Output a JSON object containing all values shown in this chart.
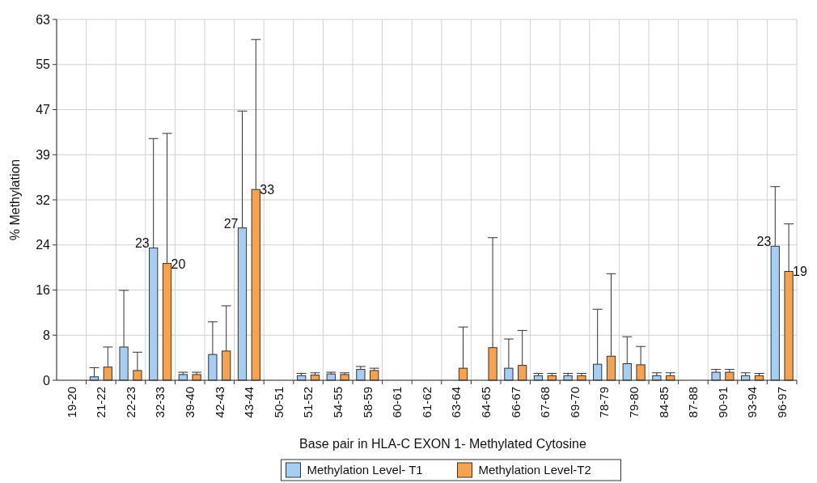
{
  "chart_data": {
    "type": "bar",
    "xlabel": "Base pair in HLA-C EXON 1- Methylated Cytosine",
    "ylabel": "% Methylation",
    "categories": [
      "19-20",
      "21-22",
      "22-23",
      "32-33",
      "39-40",
      "42-43",
      "43-44",
      "50-51",
      "51-52",
      "54-55",
      "58-59",
      "60-61",
      "61-62",
      "63-64",
      "64-65",
      "66-67",
      "67-68",
      "69-70",
      "78-79",
      "79-80",
      "84-85",
      "87-88",
      "90-91",
      "93-94",
      "96-97"
    ],
    "ylim": [
      0,
      63
    ],
    "yticks": [
      0,
      {
        "value": 7.875,
        "label": "8"
      },
      {
        "value": 15.75,
        "label": "16"
      },
      {
        "value": 23.625,
        "label": "24"
      },
      {
        "value": 31.5,
        "label": "32"
      },
      {
        "value": 39.375,
        "label": "39"
      },
      {
        "value": 47.25,
        "label": "47"
      },
      {
        "value": 55.125,
        "label": "55"
      },
      63
    ],
    "grid": true,
    "legend": "bottom",
    "series": [
      {
        "name": "Methylation Level- T1",
        "color": "#a6cdf2",
        "values": [
          null,
          0.6,
          5.8,
          23.1,
          1.0,
          4.5,
          26.6,
          null,
          0.8,
          1.1,
          1.9,
          null,
          null,
          null,
          null,
          2.1,
          0.8,
          0.8,
          2.8,
          2.9,
          0.8,
          null,
          1.4,
          0.8,
          23.4
        ],
        "errors": [
          null,
          [
            0.6,
            2.2
          ],
          [
            5.8,
            15.7
          ],
          [
            23.1,
            42.2
          ],
          [
            1.0,
            1.4
          ],
          [
            4.5,
            10.2
          ],
          [
            26.6,
            47.0
          ],
          null,
          [
            0.8,
            1.2
          ],
          [
            1.1,
            1.4
          ],
          [
            1.9,
            2.4
          ],
          null,
          null,
          null,
          null,
          [
            2.1,
            7.2
          ],
          [
            0.8,
            1.2
          ],
          [
            0.8,
            1.2
          ],
          [
            2.8,
            12.4
          ],
          [
            2.9,
            7.6
          ],
          [
            0.8,
            1.3
          ],
          null,
          [
            1.4,
            1.9
          ],
          [
            0.8,
            1.3
          ],
          [
            23.4,
            33.8
          ]
        ],
        "value_labels": [
          null,
          null,
          null,
          "23",
          null,
          null,
          "27",
          null,
          null,
          null,
          null,
          null,
          null,
          null,
          null,
          null,
          null,
          null,
          null,
          null,
          null,
          null,
          null,
          null,
          "23"
        ]
      },
      {
        "name": "Methylation Level-T2",
        "color": "#f7a24f",
        "values": [
          null,
          2.3,
          1.7,
          20.4,
          1.0,
          5.1,
          33.3,
          null,
          0.9,
          1.0,
          1.7,
          null,
          null,
          2.1,
          5.7,
          2.6,
          0.8,
          0.8,
          4.2,
          2.7,
          0.8,
          null,
          1.4,
          0.8,
          19.0
        ],
        "errors": [
          null,
          [
            2.3,
            5.8
          ],
          [
            1.7,
            4.9
          ],
          [
            20.4,
            43.1
          ],
          [
            1.0,
            1.4
          ],
          [
            5.1,
            13.0
          ],
          [
            33.3,
            59.5
          ],
          null,
          [
            0.9,
            1.3
          ],
          [
            1.0,
            1.3
          ],
          [
            1.7,
            2.1
          ],
          null,
          null,
          [
            2.1,
            9.3
          ],
          [
            5.7,
            24.9
          ],
          [
            2.6,
            8.7
          ],
          [
            0.8,
            1.2
          ],
          [
            0.8,
            1.2
          ],
          [
            4.2,
            18.6
          ],
          [
            2.7,
            5.9
          ],
          [
            0.8,
            1.3
          ],
          null,
          [
            1.4,
            1.9
          ],
          [
            0.8,
            1.2
          ],
          [
            19.0,
            27.3
          ]
        ],
        "value_labels": [
          null,
          null,
          null,
          "20",
          null,
          null,
          "33",
          null,
          null,
          null,
          null,
          null,
          null,
          null,
          null,
          null,
          null,
          null,
          null,
          null,
          null,
          null,
          null,
          null,
          "19"
        ]
      }
    ]
  }
}
